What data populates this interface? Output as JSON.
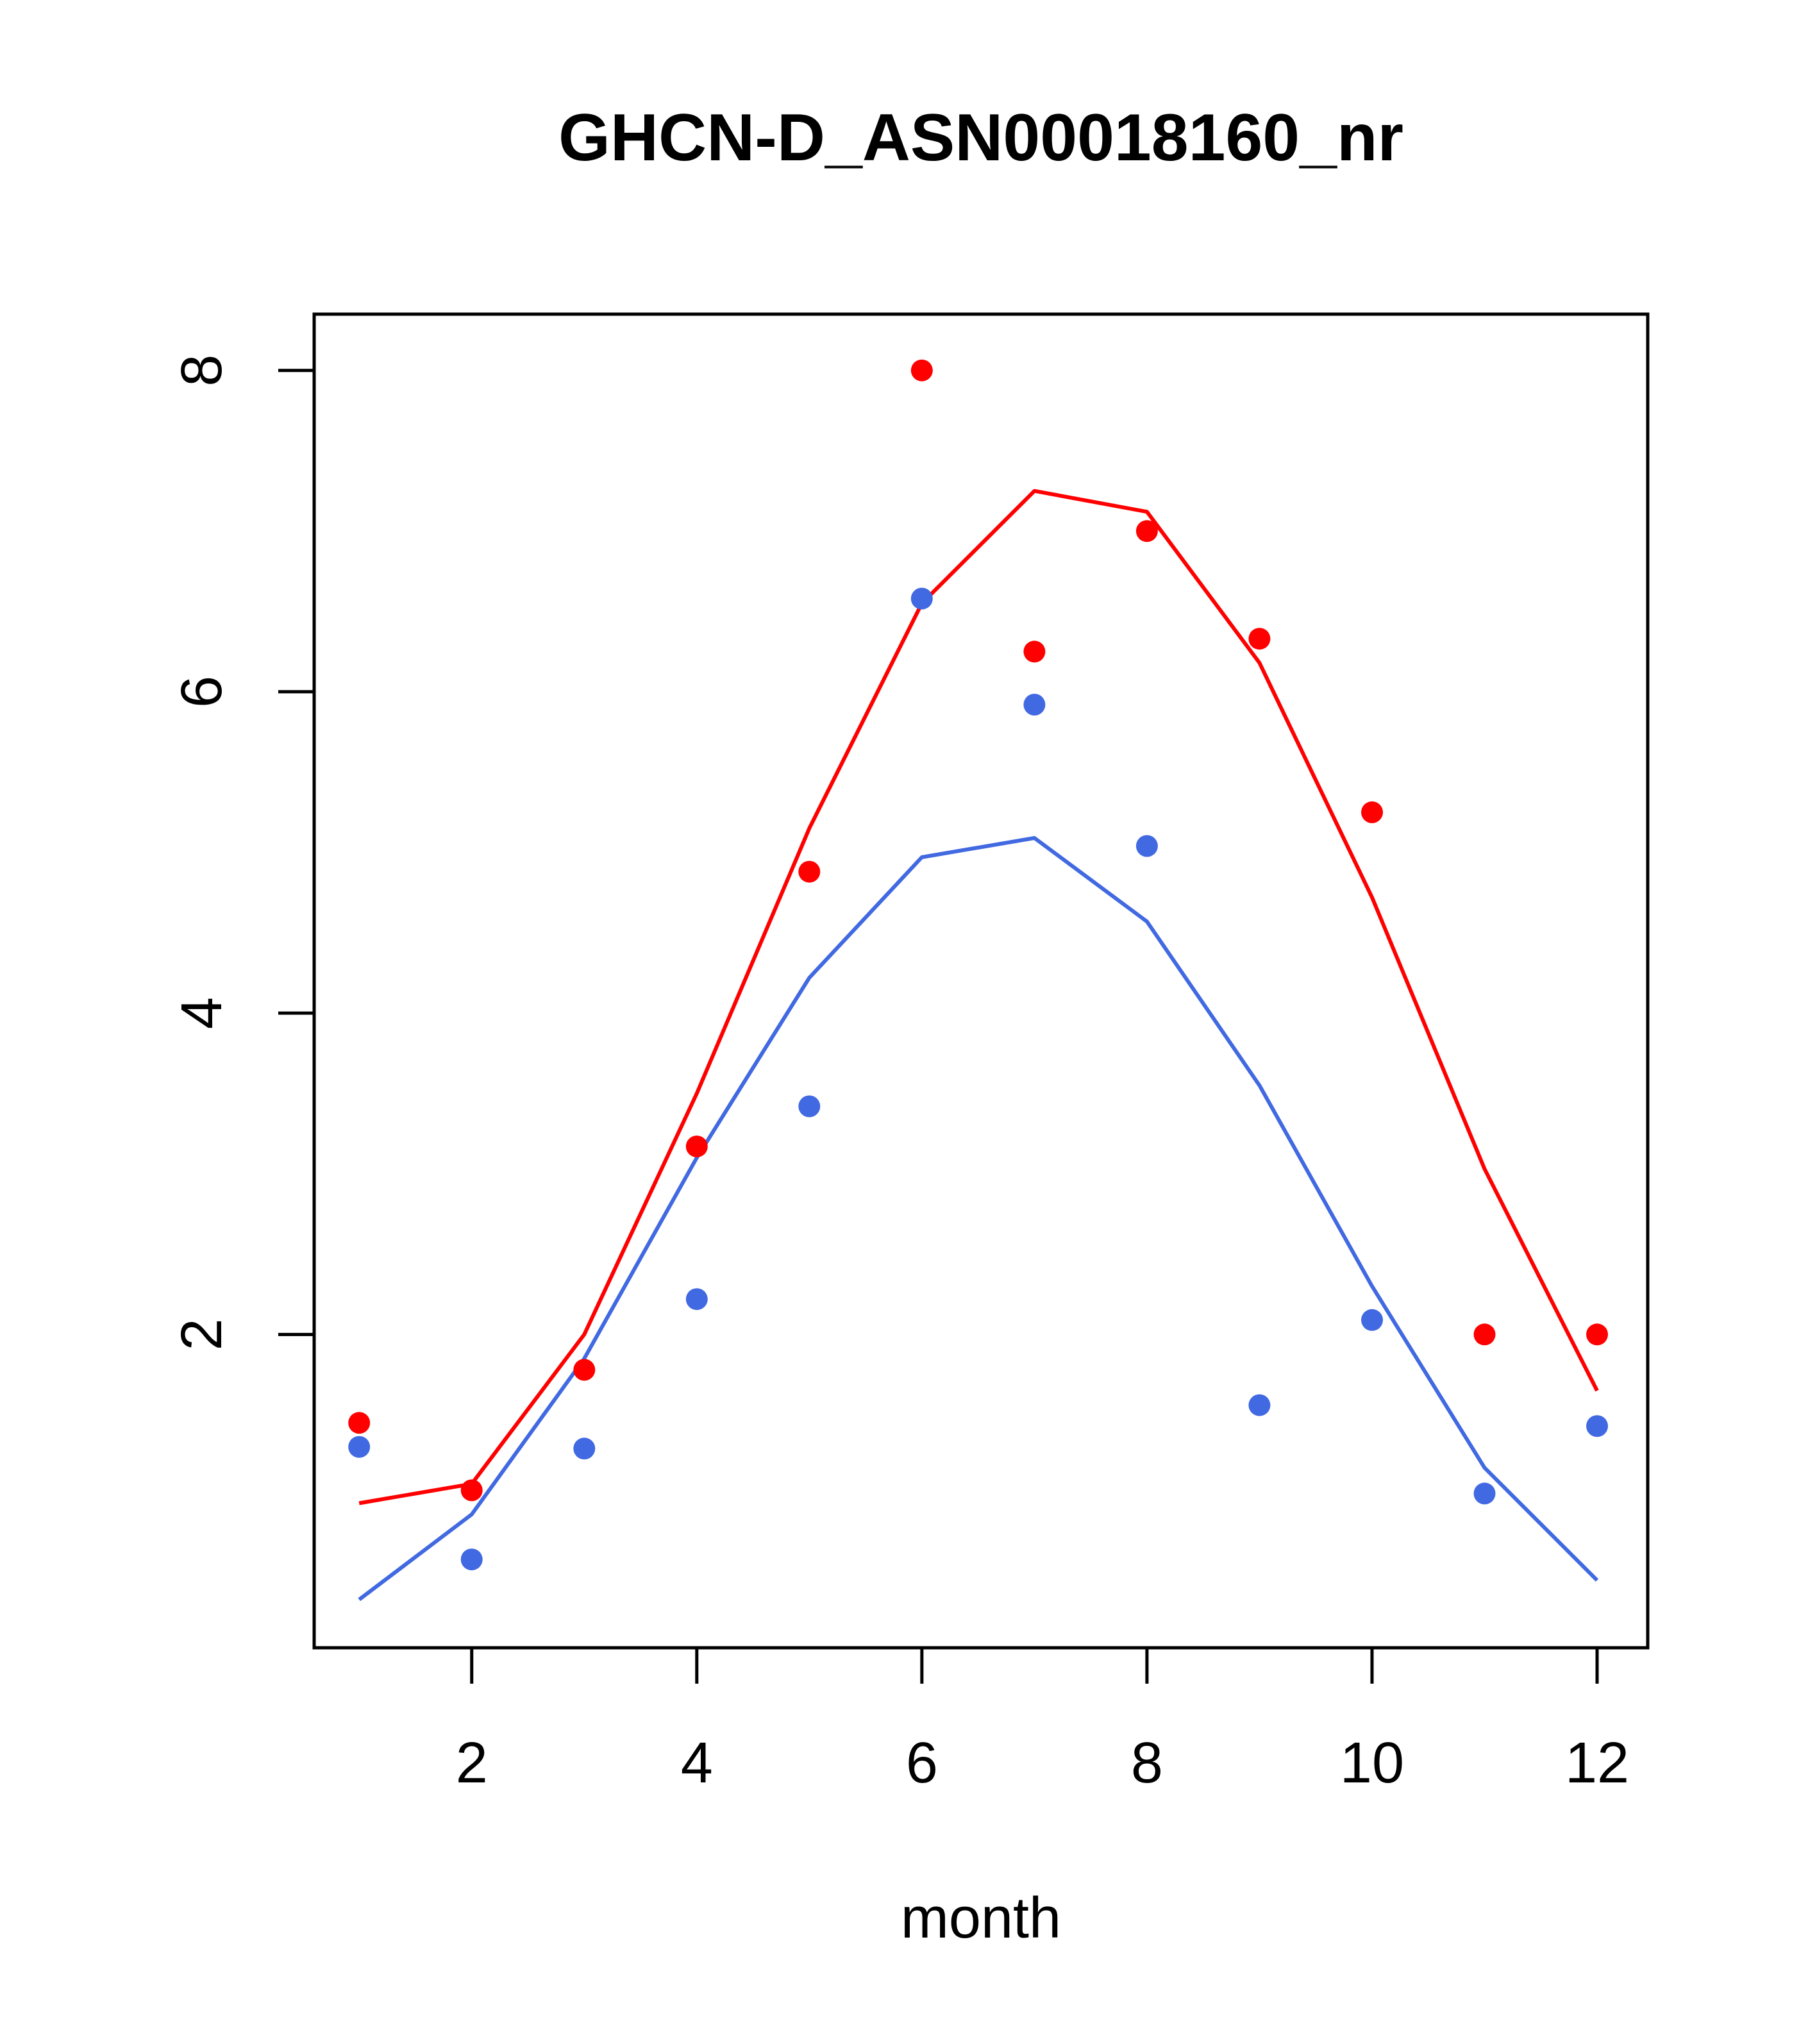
{
  "chart_data": {
    "type": "scatter",
    "title": "GHCN-D_ASN00018160_nr",
    "xlabel": "month",
    "ylabel": "",
    "xlim": [
      0.6,
      12.45
    ],
    "ylim": [
      0.05,
      8.35
    ],
    "x_ticks": [
      2,
      4,
      6,
      8,
      10,
      12
    ],
    "y_ticks": [
      2,
      4,
      6,
      8
    ],
    "grid": false,
    "legend": "none",
    "series": [
      {
        "color": "#ff0000",
        "points": {
          "x": [
            1,
            2,
            3,
            4,
            5,
            6,
            7,
            8,
            9,
            10,
            11,
            12
          ],
          "y": [
            1.45,
            1.03,
            1.78,
            3.17,
            4.88,
            8.0,
            6.25,
            7.0,
            6.33,
            5.25,
            2.0,
            2.0
          ]
        },
        "line": {
          "x": [
            1,
            2,
            3,
            4,
            5,
            6,
            7,
            8,
            9,
            10,
            11,
            12
          ],
          "y": [
            0.95,
            1.07,
            2.0,
            3.5,
            5.15,
            6.55,
            7.25,
            7.12,
            6.18,
            4.72,
            3.03,
            1.65
          ]
        }
      },
      {
        "color": "#4169e1",
        "points": {
          "x": [
            1,
            2,
            3,
            4,
            5,
            6,
            7,
            8,
            9,
            10,
            11,
            12
          ],
          "y": [
            1.3,
            0.6,
            1.29,
            2.22,
            3.42,
            6.58,
            5.92,
            5.04,
            1.56,
            2.09,
            1.01,
            1.43
          ]
        },
        "line": {
          "x": [
            1,
            2,
            3,
            4,
            5,
            6,
            7,
            8,
            9,
            10,
            11,
            12
          ],
          "y": [
            0.35,
            0.88,
            1.85,
            3.1,
            4.22,
            4.97,
            5.09,
            4.57,
            3.55,
            2.3,
            1.17,
            0.47
          ]
        }
      }
    ]
  }
}
